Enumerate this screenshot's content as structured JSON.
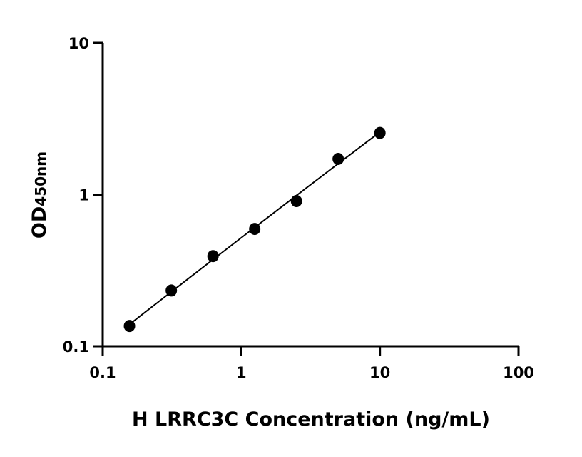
{
  "chart_data": {
    "type": "scatter",
    "title": "",
    "xlabel": "H LRRC3C Concentration (ng/mL)",
    "ylabel_main": "OD",
    "ylabel_sub": "450nm",
    "x_scale": "log",
    "y_scale": "log",
    "xlim": [
      0.1,
      100
    ],
    "ylim": [
      0.1,
      10
    ],
    "x_ticks": [
      "0.1",
      "1",
      "10",
      "100"
    ],
    "y_ticks": [
      "0.1",
      "1",
      "10"
    ],
    "grid": false,
    "fit_line": true,
    "marker_color": "#000000",
    "x": [
      0.156,
      0.3125,
      0.625,
      1.25,
      2.5,
      5,
      10
    ],
    "y": [
      0.136,
      0.233,
      0.393,
      0.594,
      0.907,
      1.72,
      2.55
    ]
  }
}
